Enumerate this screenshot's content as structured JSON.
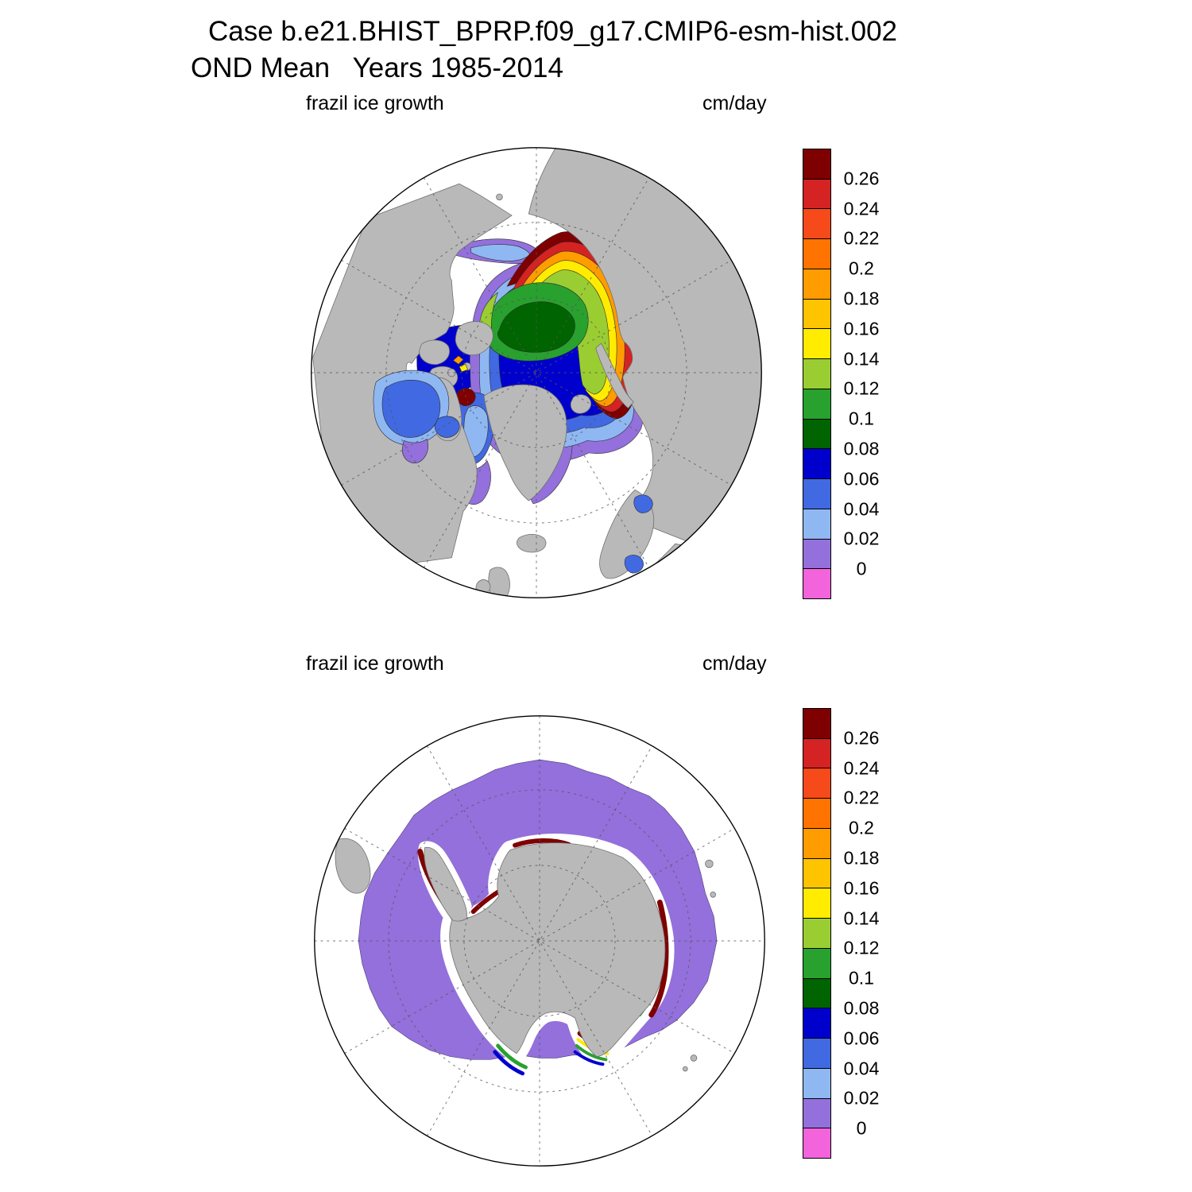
{
  "header": {
    "line1": "Case b.e21.BHIST_BPRP.f09_g17.CMIP6-esm-hist.002",
    "line2": "OND Mean   Years 1985-2014"
  },
  "panels": [
    {
      "variable": "frazil ice growth",
      "units": "cm/day"
    },
    {
      "variable": "frazil ice growth",
      "units": "cm/day"
    }
  ],
  "chart_data": [
    {
      "type": "heatmap",
      "projection": "polar stereographic",
      "region": "Arctic (Northern Hemisphere)",
      "title": "frazil ice growth",
      "units": "cm/day",
      "season": "OND mean, years 1985-2014",
      "contour_levels": [
        0,
        0.02,
        0.04,
        0.06,
        0.08,
        0.1,
        0.12,
        0.14,
        0.16,
        0.18,
        0.2,
        0.22,
        0.24,
        0.26
      ],
      "colorbar": {
        "tick_labels_top_to_bottom": [
          "0.26",
          "0.24",
          "0.22",
          "0.2",
          "0.18",
          "0.16",
          "0.14",
          "0.12",
          "0.1",
          "0.08",
          "0.06",
          "0.04",
          "0.02",
          "0"
        ],
        "colors_top_to_bottom": [
          "#7e0000",
          "#d42322",
          "#f64a1b",
          "#ff7300",
          "#ff9c00",
          "#ffc400",
          "#ffec00",
          "#9acd32",
          "#28a12f",
          "#006400",
          "#0000cd",
          "#4169e1",
          "#8fb8f2",
          "#9370db",
          "#f263dc"
        ]
      },
      "pattern": "Maximum growth (>0.26 cm/day, dark red) in a band along the Siberian shelf coast; values decrease inward through orange, yellow and yellow-green to a green central-pack region with a dark-green low core near the pole; dark blue band (0.06-0.08) south of the pack; blue 0.02-0.06 in Chukchi, Canadian Archipelago channels, Baffin Bay and Hudson Bay; purple near-zero fringe in East Greenland, Barents and Labrador seas."
    },
    {
      "type": "heatmap",
      "projection": "polar stereographic",
      "region": "Antarctic (Southern Hemisphere)",
      "title": "frazil ice growth",
      "units": "cm/day",
      "season": "OND mean, years 1985-2014",
      "contour_levels": [
        0,
        0.02,
        0.04,
        0.06,
        0.08,
        0.1,
        0.12,
        0.14,
        0.16,
        0.18,
        0.2,
        0.22,
        0.24,
        0.26
      ],
      "colorbar": {
        "tick_labels_top_to_bottom": [
          "0.26",
          "0.24",
          "0.22",
          "0.2",
          "0.18",
          "0.16",
          "0.14",
          "0.12",
          "0.1",
          "0.08",
          "0.06",
          "0.04",
          "0.02",
          "0"
        ],
        "colors_top_to_bottom": [
          "#7e0000",
          "#d42322",
          "#f64a1b",
          "#ff7300",
          "#ff9c00",
          "#ffc400",
          "#ffec00",
          "#9acd32",
          "#28a12f",
          "#006400",
          "#0000cd",
          "#4169e1",
          "#8fb8f2",
          "#9370db",
          "#f263dc"
        ]
      },
      "pattern": "Broad purple near-zero growth (0-0.02 cm/day) ring over the Southern Ocean surrounding Antarctica; narrow coastal bands of very high growth (>0.26, dark red) in polynya regions along the Antarctic Peninsula, Weddell Sea, East Antarctic and Ross Sea coasts with thin yellow, green and blue transition bands; white (no growth) over the ice shelves next to the coast."
    }
  ],
  "map_colors": {
    "land": "#b9b9b9",
    "ocean": "#ffffff",
    "map_outline": "#000000",
    "graticule": "#555555"
  }
}
